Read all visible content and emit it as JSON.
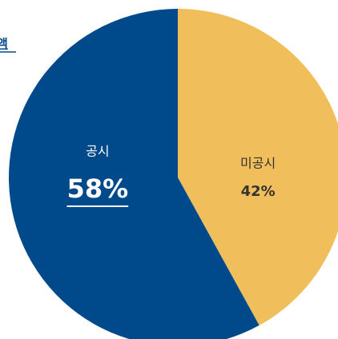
{
  "chart_data": {
    "type": "pie",
    "title": "액",
    "categories": [
      "미공시",
      "공시"
    ],
    "values": [
      42,
      58
    ],
    "value_labels": [
      "42%",
      "58%"
    ],
    "colors": [
      "#f0be5a",
      "#004a8c"
    ],
    "label_colors": [
      "#333333",
      "#ffffff"
    ]
  }
}
